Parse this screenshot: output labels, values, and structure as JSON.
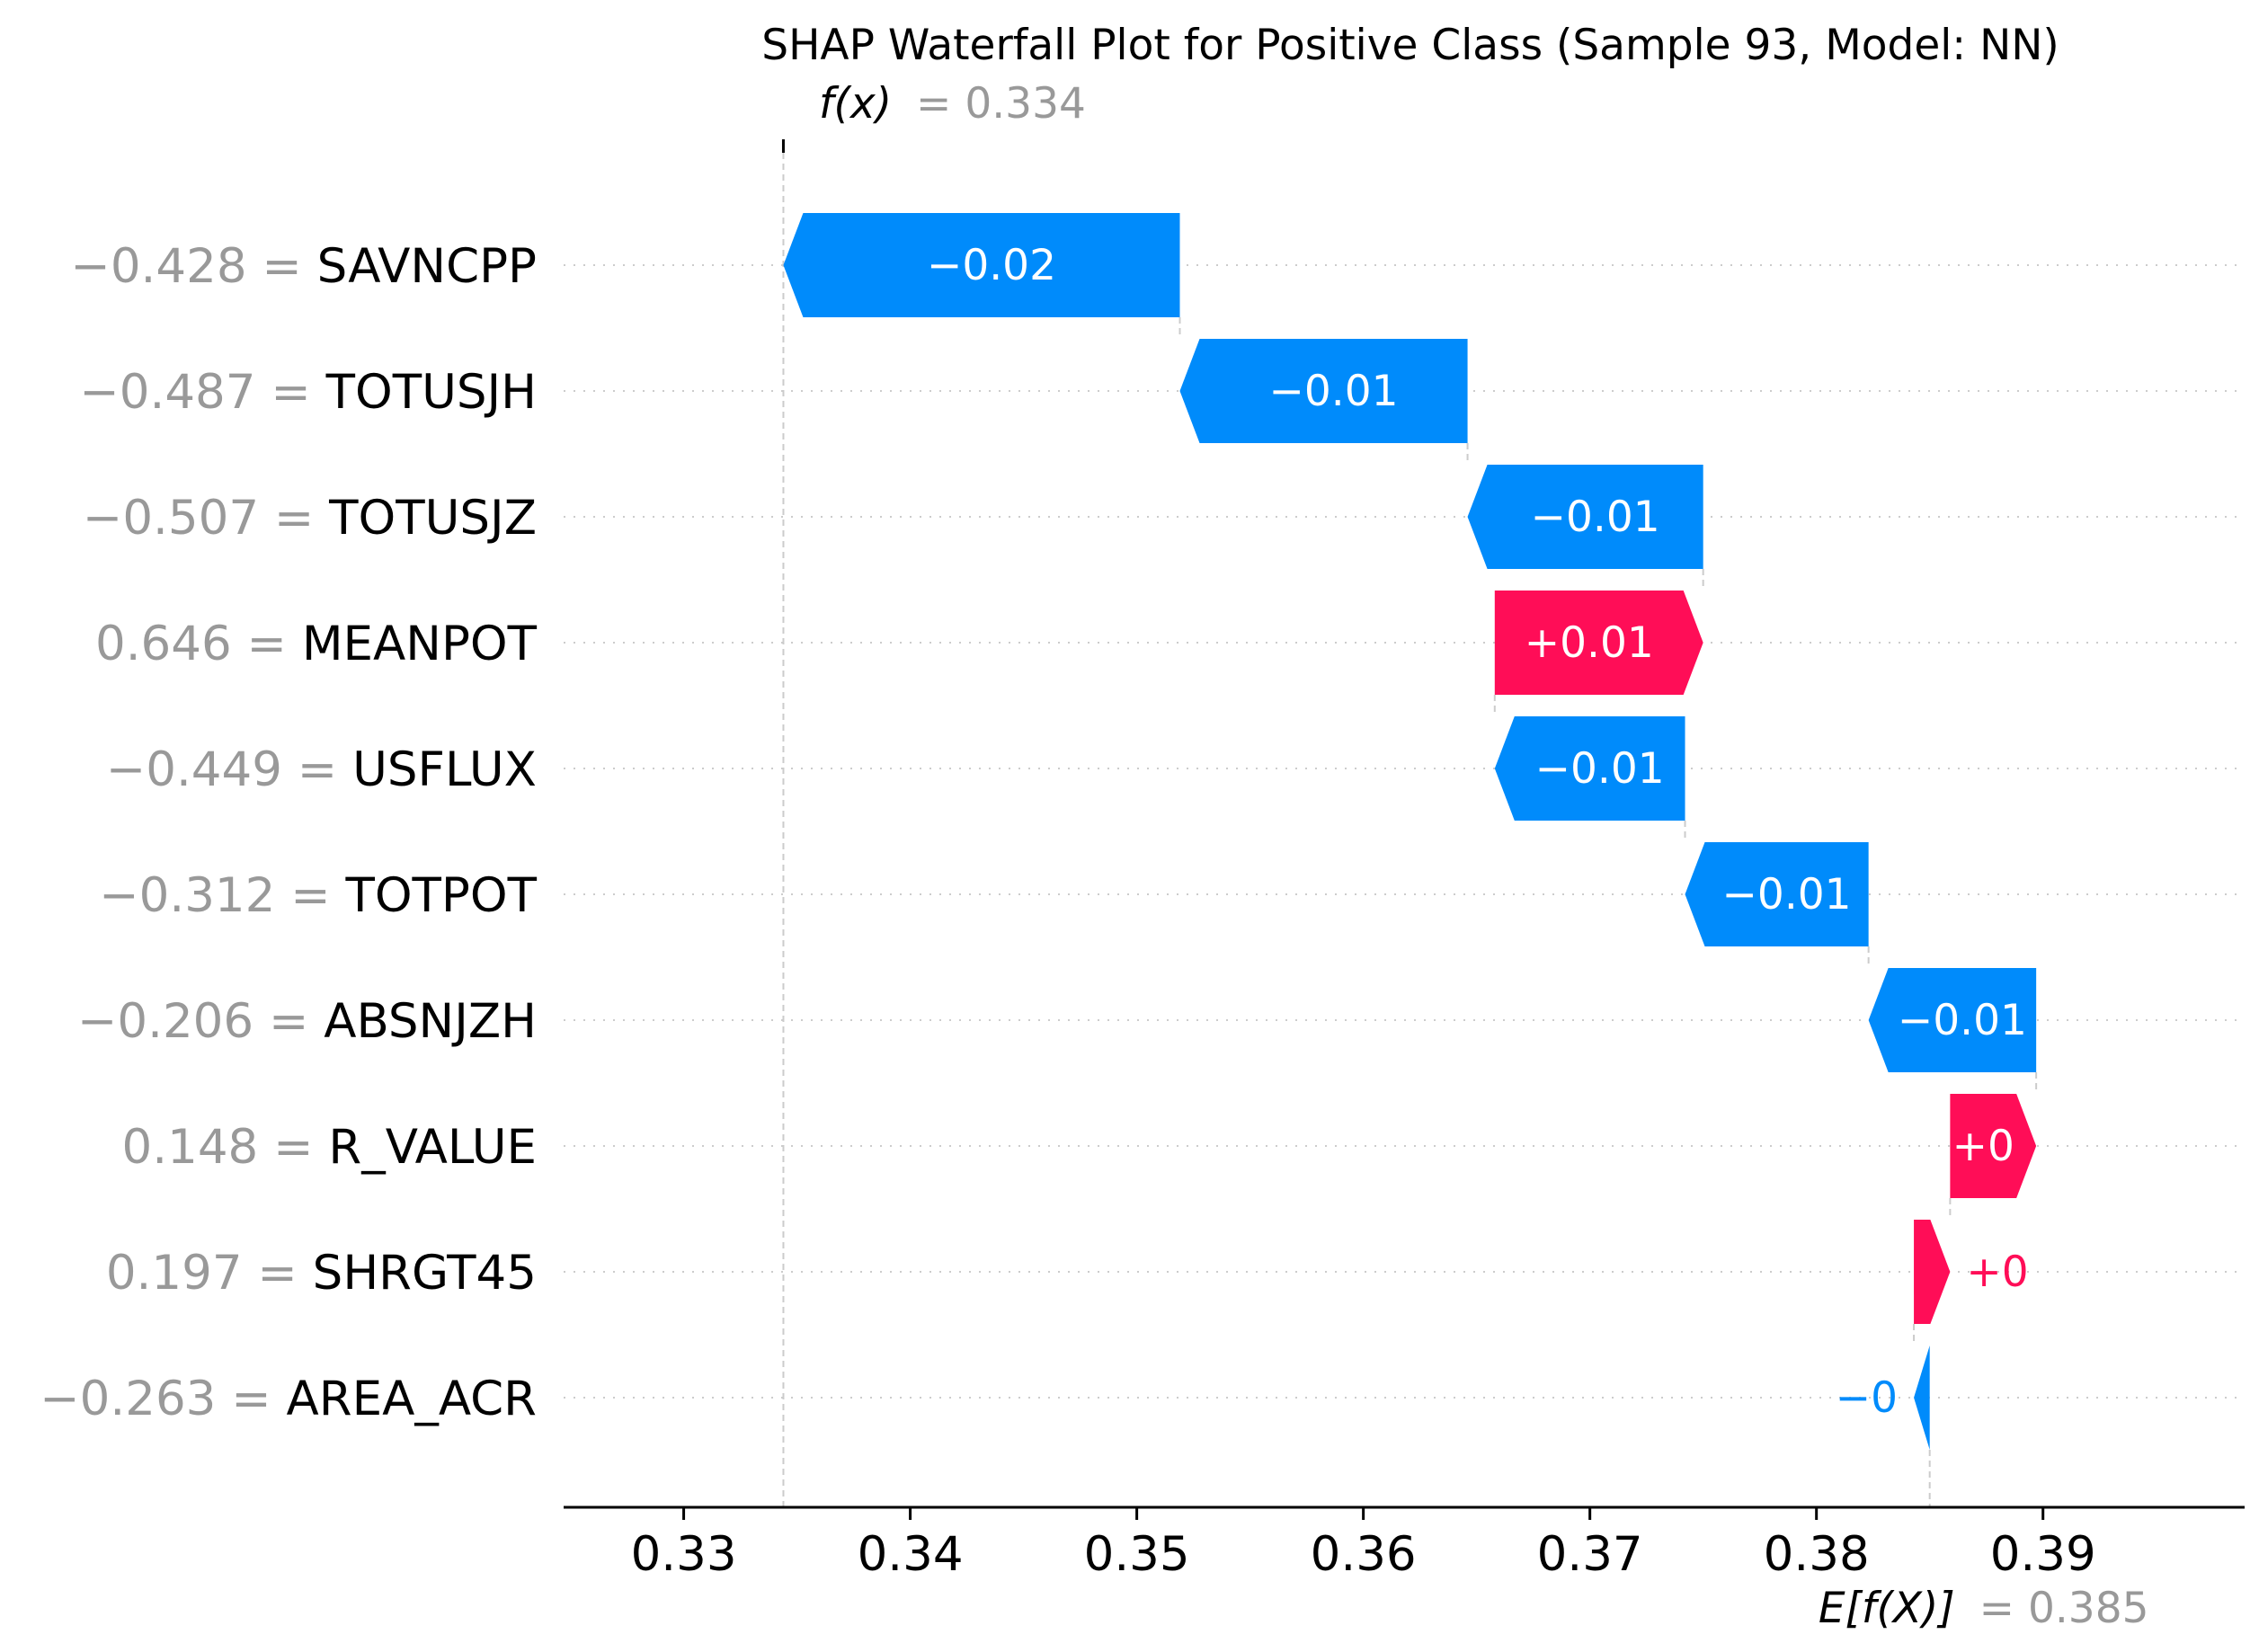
{
  "chart_data": {
    "type": "waterfall",
    "title": "SHAP Waterfall Plot for Positive Class (Sample 93, Model: NN)",
    "fx": {
      "label": "f(x)",
      "value_text": "= 0.334",
      "value": 0.3344
    },
    "efx": {
      "label": "E[f(X)]",
      "value_text": "= 0.385",
      "value": 0.385
    },
    "xlim": [
      0.3247,
      0.3989
    ],
    "xticks": [
      {
        "value": 0.33,
        "label": "0.33"
      },
      {
        "value": 0.34,
        "label": "0.34"
      },
      {
        "value": 0.35,
        "label": "0.35"
      },
      {
        "value": 0.36,
        "label": "0.36"
      },
      {
        "value": 0.37,
        "label": "0.37"
      },
      {
        "value": 0.38,
        "label": "0.38"
      },
      {
        "value": 0.39,
        "label": "0.39"
      }
    ],
    "features": [
      {
        "feature_value": "−0.428 =",
        "name": "SAVNCPP",
        "start": 0.3519,
        "end": 0.3344,
        "label": "−0.02",
        "label_inside": true
      },
      {
        "feature_value": "−0.487 =",
        "name": "TOTUSJH",
        "start": 0.3646,
        "end": 0.3519,
        "label": "−0.01",
        "label_inside": true
      },
      {
        "feature_value": "−0.507 =",
        "name": "TOTUSJZ",
        "start": 0.375,
        "end": 0.3646,
        "label": "−0.01",
        "label_inside": true
      },
      {
        "feature_value": "0.646 =",
        "name": "MEANPOT",
        "start": 0.3658,
        "end": 0.375,
        "label": "+0.01",
        "label_inside": true
      },
      {
        "feature_value": "−0.449 =",
        "name": "USFLUX",
        "start": 0.3742,
        "end": 0.3658,
        "label": "−0.01",
        "label_inside": true
      },
      {
        "feature_value": "−0.312 =",
        "name": "TOTPOT",
        "start": 0.3823,
        "end": 0.3742,
        "label": "−0.01",
        "label_inside": true
      },
      {
        "feature_value": "−0.206 =",
        "name": "ABSNJZH",
        "start": 0.3897,
        "end": 0.3823,
        "label": "−0.01",
        "label_inside": true
      },
      {
        "feature_value": "0.148 =",
        "name": "R_VALUE",
        "start": 0.3859,
        "end": 0.3897,
        "label": "+0",
        "label_inside": true
      },
      {
        "feature_value": "0.197 =",
        "name": "SHRGT45",
        "start": 0.3843,
        "end": 0.3859,
        "label": "+0",
        "label_inside": false
      },
      {
        "feature_value": "−0.263 =",
        "name": "AREA_ACR",
        "start": 0.385,
        "end": 0.3843,
        "label": "−0",
        "label_inside": false
      }
    ],
    "colors": {
      "positive": "#ff0d57",
      "negative": "#008bfb",
      "value_text": "#999999",
      "name_text": "#000000",
      "gridline": "#cccccc",
      "axis": "#000000"
    }
  }
}
